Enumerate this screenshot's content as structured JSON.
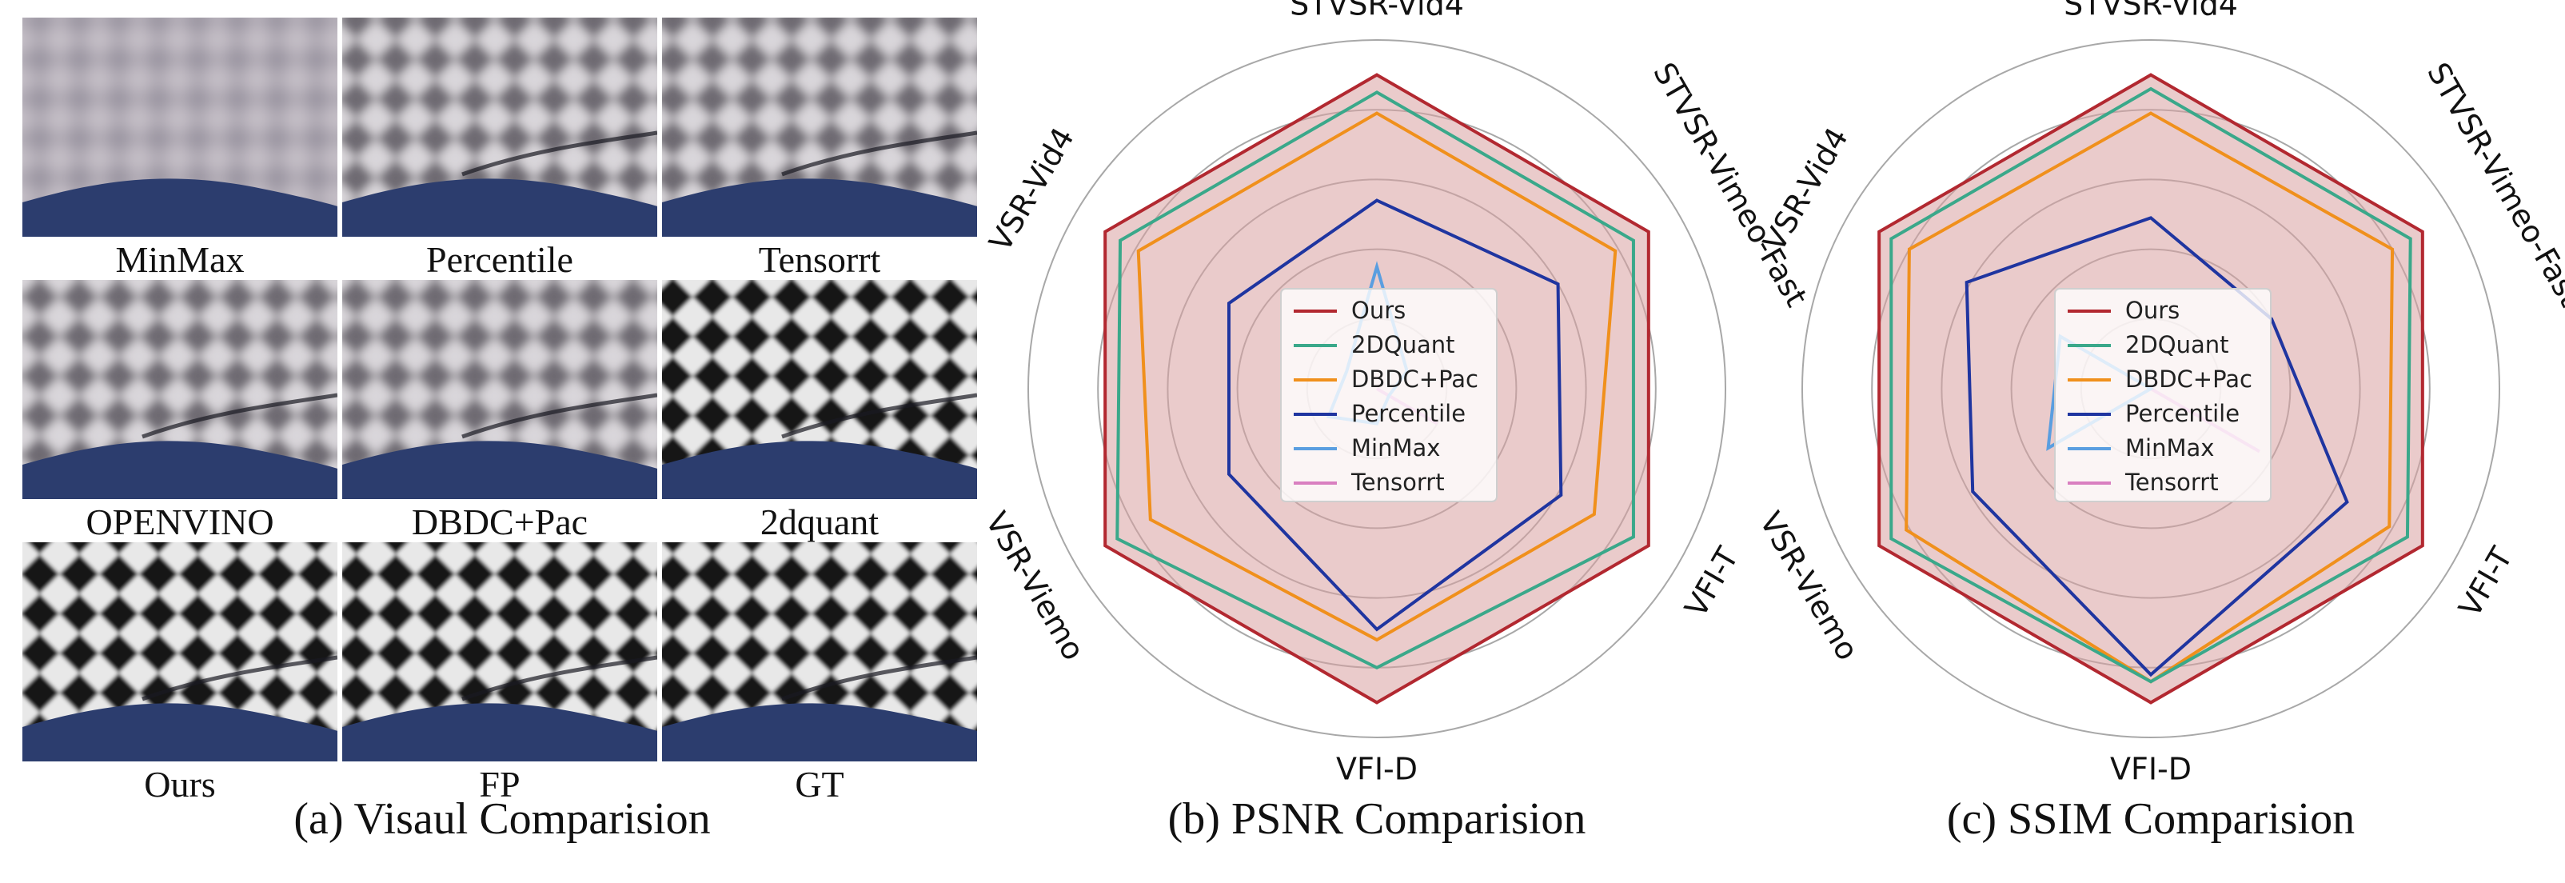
{
  "panels": {
    "visual": {
      "caption": "(a) Visaul Comparision",
      "tiles": [
        {
          "label": "MinMax",
          "style": "blur"
        },
        {
          "label": "Percentile",
          "style": "soft"
        },
        {
          "label": "Tensorrt",
          "style": "soft"
        },
        {
          "label": "OPENVINO",
          "style": "soft"
        },
        {
          "label": "DBDC+Pac",
          "style": "soft"
        },
        {
          "label": "2dquant",
          "style": "sharp"
        },
        {
          "label": "Ours",
          "style": "sharp"
        },
        {
          "label": "FP",
          "style": "sharp"
        },
        {
          "label": "GT",
          "style": "sharp"
        }
      ]
    }
  },
  "chart_data": [
    {
      "type": "radar",
      "caption": "(b) PSNR Comparision",
      "axes": [
        "STVSR-Vid4",
        "STVSR-Vimeo-Fast",
        "VFI-T",
        "VFI-D",
        "VSR-Viemo",
        "VSR-Vid4"
      ],
      "rmax": 1.0,
      "grid_rings": [
        0.2,
        0.4,
        0.6,
        0.8,
        1.0
      ],
      "grid": true,
      "legend_position": "center",
      "series": [
        {
          "name": "Ours",
          "color": "#b22830",
          "fill": "#d9a0a0",
          "values": [
            0.9,
            0.9,
            0.9,
            0.9,
            0.9,
            0.9
          ]
        },
        {
          "name": "2DQuant",
          "color": "#3aa88a",
          "values": [
            0.85,
            0.85,
            0.85,
            0.8,
            0.86,
            0.85
          ]
        },
        {
          "name": "DBDC+Pac",
          "color": "#f0901c",
          "values": [
            0.79,
            0.79,
            0.72,
            0.72,
            0.75,
            0.79
          ]
        },
        {
          "name": "Percentile",
          "color": "#1f35a0",
          "values": [
            0.54,
            0.6,
            0.61,
            0.69,
            0.49,
            0.49
          ]
        },
        {
          "name": "MinMax",
          "color": "#5a9ee0",
          "values": [
            0.35,
            0.1,
            0.04,
            0.1,
            0.16,
            0.1
          ]
        },
        {
          "name": "Tensorrt",
          "color": "#d97fc0",
          "values": [
            0.0,
            0.0,
            0.2,
            0.0,
            0.0,
            0.0
          ]
        }
      ]
    },
    {
      "type": "radar",
      "caption": "(c) SSIM Comparision",
      "axes": [
        "STVSR-Vid4",
        "STVSR-Vimeo-Fast",
        "VFI-T",
        "VFI-D",
        "VSR-Viemo",
        "VSR-Vid4"
      ],
      "rmax": 1.0,
      "grid_rings": [
        0.2,
        0.4,
        0.6,
        0.8,
        1.0
      ],
      "grid": true,
      "legend_position": "center",
      "series": [
        {
          "name": "Ours",
          "color": "#b22830",
          "fill": "#d9a0a0",
          "values": [
            0.9,
            0.9,
            0.9,
            0.9,
            0.9,
            0.9
          ]
        },
        {
          "name": "2DQuant",
          "color": "#3aa88a",
          "values": [
            0.86,
            0.86,
            0.85,
            0.84,
            0.86,
            0.86
          ]
        },
        {
          "name": "DBDC+Pac",
          "color": "#f0901c",
          "values": [
            0.79,
            0.8,
            0.79,
            0.84,
            0.81,
            0.8
          ]
        },
        {
          "name": "Percentile",
          "color": "#1f35a0",
          "values": [
            0.49,
            0.4,
            0.65,
            0.82,
            0.59,
            0.61
          ]
        },
        {
          "name": "MinMax",
          "color": "#5a9ee0",
          "values": [
            0.0,
            0.0,
            0.0,
            0.0,
            0.34,
            0.3
          ]
        },
        {
          "name": "Tensorrt",
          "color": "#d97fc0",
          "values": [
            0.0,
            0.0,
            0.36,
            0.0,
            0.0,
            0.0
          ]
        }
      ]
    }
  ]
}
